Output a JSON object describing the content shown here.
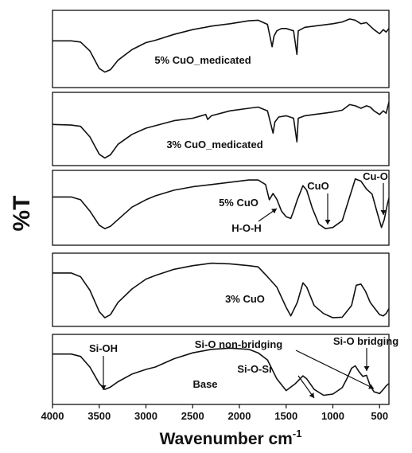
{
  "chart_data": {
    "type": "line",
    "xlabel": "Wavenumber cm",
    "xlabel_superscript": "-1",
    "ylabel": "%T",
    "xlim": [
      4000,
      400
    ],
    "x_ticks": [
      4000,
      3500,
      3000,
      2500,
      2000,
      1500,
      1000,
      500
    ],
    "grid": false,
    "series": [
      {
        "name": "5% CuO_medicated",
        "points": [
          [
            4000,
            0.55
          ],
          [
            3800,
            0.55
          ],
          [
            3700,
            0.53
          ],
          [
            3600,
            0.38
          ],
          [
            3500,
            0.08
          ],
          [
            3440,
            0.02
          ],
          [
            3380,
            0.06
          ],
          [
            3300,
            0.22
          ],
          [
            3150,
            0.4
          ],
          [
            3000,
            0.52
          ],
          [
            2900,
            0.56
          ],
          [
            2700,
            0.66
          ],
          [
            2500,
            0.74
          ],
          [
            2300,
            0.8
          ],
          [
            2100,
            0.84
          ],
          [
            1900,
            0.89
          ],
          [
            1800,
            0.9
          ],
          [
            1700,
            0.83
          ],
          [
            1650,
            0.45
          ],
          [
            1630,
            0.63
          ],
          [
            1600,
            0.72
          ],
          [
            1550,
            0.76
          ],
          [
            1500,
            0.76
          ],
          [
            1420,
            0.72
          ],
          [
            1385,
            0.32
          ],
          [
            1370,
            0.72
          ],
          [
            1300,
            0.78
          ],
          [
            1200,
            0.8
          ],
          [
            1100,
            0.82
          ],
          [
            1000,
            0.84
          ],
          [
            900,
            0.87
          ],
          [
            820,
            0.92
          ],
          [
            760,
            0.9
          ],
          [
            700,
            0.84
          ],
          [
            640,
            0.86
          ],
          [
            600,
            0.8
          ],
          [
            560,
            0.74
          ],
          [
            500,
            0.67
          ],
          [
            460,
            0.74
          ],
          [
            430,
            0.7
          ],
          [
            400,
            0.76
          ]
        ]
      },
      {
        "name": "3% CuO_medicated",
        "points": [
          [
            4000,
            0.56
          ],
          [
            3800,
            0.55
          ],
          [
            3700,
            0.53
          ],
          [
            3600,
            0.36
          ],
          [
            3500,
            0.08
          ],
          [
            3440,
            0.02
          ],
          [
            3380,
            0.07
          ],
          [
            3300,
            0.24
          ],
          [
            3150,
            0.4
          ],
          [
            3000,
            0.5
          ],
          [
            2900,
            0.54
          ],
          [
            2700,
            0.62
          ],
          [
            2500,
            0.66
          ],
          [
            2360,
            0.72
          ],
          [
            2340,
            0.64
          ],
          [
            2300,
            0.7
          ],
          [
            2100,
            0.78
          ],
          [
            1900,
            0.82
          ],
          [
            1800,
            0.84
          ],
          [
            1700,
            0.78
          ],
          [
            1640,
            0.42
          ],
          [
            1620,
            0.6
          ],
          [
            1580,
            0.68
          ],
          [
            1500,
            0.7
          ],
          [
            1420,
            0.66
          ],
          [
            1385,
            0.28
          ],
          [
            1370,
            0.66
          ],
          [
            1300,
            0.7
          ],
          [
            1200,
            0.72
          ],
          [
            1100,
            0.74
          ],
          [
            1000,
            0.76
          ],
          [
            900,
            0.79
          ],
          [
            820,
            0.88
          ],
          [
            760,
            0.86
          ],
          [
            700,
            0.82
          ],
          [
            640,
            0.86
          ],
          [
            600,
            0.84
          ],
          [
            560,
            0.78
          ],
          [
            500,
            0.72
          ],
          [
            460,
            0.78
          ],
          [
            430,
            0.74
          ],
          [
            400,
            0.92
          ]
        ]
      },
      {
        "name": "5% CuO",
        "points": [
          [
            4000,
            0.6
          ],
          [
            3800,
            0.6
          ],
          [
            3700,
            0.55
          ],
          [
            3600,
            0.35
          ],
          [
            3500,
            0.1
          ],
          [
            3440,
            0.04
          ],
          [
            3380,
            0.08
          ],
          [
            3300,
            0.2
          ],
          [
            3150,
            0.42
          ],
          [
            3000,
            0.55
          ],
          [
            2900,
            0.62
          ],
          [
            2700,
            0.72
          ],
          [
            2500,
            0.78
          ],
          [
            2300,
            0.82
          ],
          [
            2100,
            0.86
          ],
          [
            1900,
            0.9
          ],
          [
            1800,
            0.9
          ],
          [
            1720,
            0.82
          ],
          [
            1680,
            0.55
          ],
          [
            1640,
            0.66
          ],
          [
            1600,
            0.56
          ],
          [
            1550,
            0.35
          ],
          [
            1500,
            0.25
          ],
          [
            1450,
            0.22
          ],
          [
            1420,
            0.35
          ],
          [
            1380,
            0.55
          ],
          [
            1320,
            0.8
          ],
          [
            1280,
            0.72
          ],
          [
            1220,
            0.4
          ],
          [
            1150,
            0.12
          ],
          [
            1080,
            0.04
          ],
          [
            1000,
            0.06
          ],
          [
            900,
            0.18
          ],
          [
            820,
            0.6
          ],
          [
            760,
            0.92
          ],
          [
            700,
            0.88
          ],
          [
            640,
            0.74
          ],
          [
            580,
            0.65
          ],
          [
            530,
            0.35
          ],
          [
            480,
            0.06
          ],
          [
            450,
            0.2
          ],
          [
            420,
            0.45
          ],
          [
            400,
            0.58
          ]
        ]
      },
      {
        "name": "3% CuO",
        "points": [
          [
            4000,
            0.78
          ],
          [
            3800,
            0.78
          ],
          [
            3700,
            0.72
          ],
          [
            3600,
            0.5
          ],
          [
            3500,
            0.15
          ],
          [
            3440,
            0.05
          ],
          [
            3380,
            0.1
          ],
          [
            3300,
            0.3
          ],
          [
            3150,
            0.52
          ],
          [
            3000,
            0.68
          ],
          [
            2900,
            0.74
          ],
          [
            2700,
            0.84
          ],
          [
            2500,
            0.9
          ],
          [
            2300,
            0.94
          ],
          [
            2100,
            0.93
          ],
          [
            1900,
            0.9
          ],
          [
            1800,
            0.88
          ],
          [
            1700,
            0.72
          ],
          [
            1600,
            0.55
          ],
          [
            1500,
            0.22
          ],
          [
            1450,
            0.08
          ],
          [
            1380,
            0.3
          ],
          [
            1320,
            0.62
          ],
          [
            1280,
            0.55
          ],
          [
            1200,
            0.25
          ],
          [
            1100,
            0.12
          ],
          [
            1000,
            0.05
          ],
          [
            900,
            0.06
          ],
          [
            800,
            0.25
          ],
          [
            750,
            0.58
          ],
          [
            700,
            0.6
          ],
          [
            650,
            0.48
          ],
          [
            600,
            0.3
          ],
          [
            560,
            0.22
          ],
          [
            500,
            0.1
          ],
          [
            460,
            0.08
          ],
          [
            430,
            0.12
          ],
          [
            400,
            0.2
          ]
        ]
      },
      {
        "name": "Base",
        "points": [
          [
            4000,
            0.72
          ],
          [
            3800,
            0.72
          ],
          [
            3700,
            0.68
          ],
          [
            3600,
            0.5
          ],
          [
            3500,
            0.22
          ],
          [
            3440,
            0.12
          ],
          [
            3380,
            0.16
          ],
          [
            3300,
            0.25
          ],
          [
            3150,
            0.38
          ],
          [
            3000,
            0.46
          ],
          [
            2900,
            0.5
          ],
          [
            2700,
            0.64
          ],
          [
            2500,
            0.74
          ],
          [
            2300,
            0.8
          ],
          [
            2100,
            0.82
          ],
          [
            1900,
            0.8
          ],
          [
            1800,
            0.74
          ],
          [
            1700,
            0.62
          ],
          [
            1600,
            0.3
          ],
          [
            1500,
            0.1
          ],
          [
            1400,
            0.22
          ],
          [
            1320,
            0.35
          ],
          [
            1280,
            0.3
          ],
          [
            1200,
            0.12
          ],
          [
            1100,
            0.02
          ],
          [
            1000,
            0.04
          ],
          [
            900,
            0.15
          ],
          [
            850,
            0.3
          ],
          [
            800,
            0.48
          ],
          [
            760,
            0.52
          ],
          [
            720,
            0.42
          ],
          [
            680,
            0.34
          ],
          [
            640,
            0.36
          ],
          [
            600,
            0.18
          ],
          [
            560,
            0.08
          ],
          [
            500,
            0.05
          ],
          [
            460,
            0.12
          ],
          [
            430,
            0.18
          ],
          [
            400,
            0.22
          ]
        ]
      }
    ],
    "annotations": [
      {
        "text": "Si-OH",
        "panel": 4,
        "x": 3440,
        "y": 0.12
      },
      {
        "text": "Si-O non-bridging",
        "panel": 4,
        "x": 880,
        "y": 0.03
      },
      {
        "text": "Si-O bridging",
        "panel": 4,
        "x": 620,
        "y": 0.2
      },
      {
        "text": "Si-O-Si",
        "panel": 4,
        "x": 1100,
        "y": 0.03
      },
      {
        "text": "H-O-H",
        "panel": 2,
        "x": 1640,
        "y": 0.6
      },
      {
        "text": "CuO",
        "panel": 2,
        "x": 1030,
        "y": 0.06
      },
      {
        "text": "Cu-O",
        "panel": 2,
        "x": 470,
        "y": 0.1
      }
    ]
  }
}
